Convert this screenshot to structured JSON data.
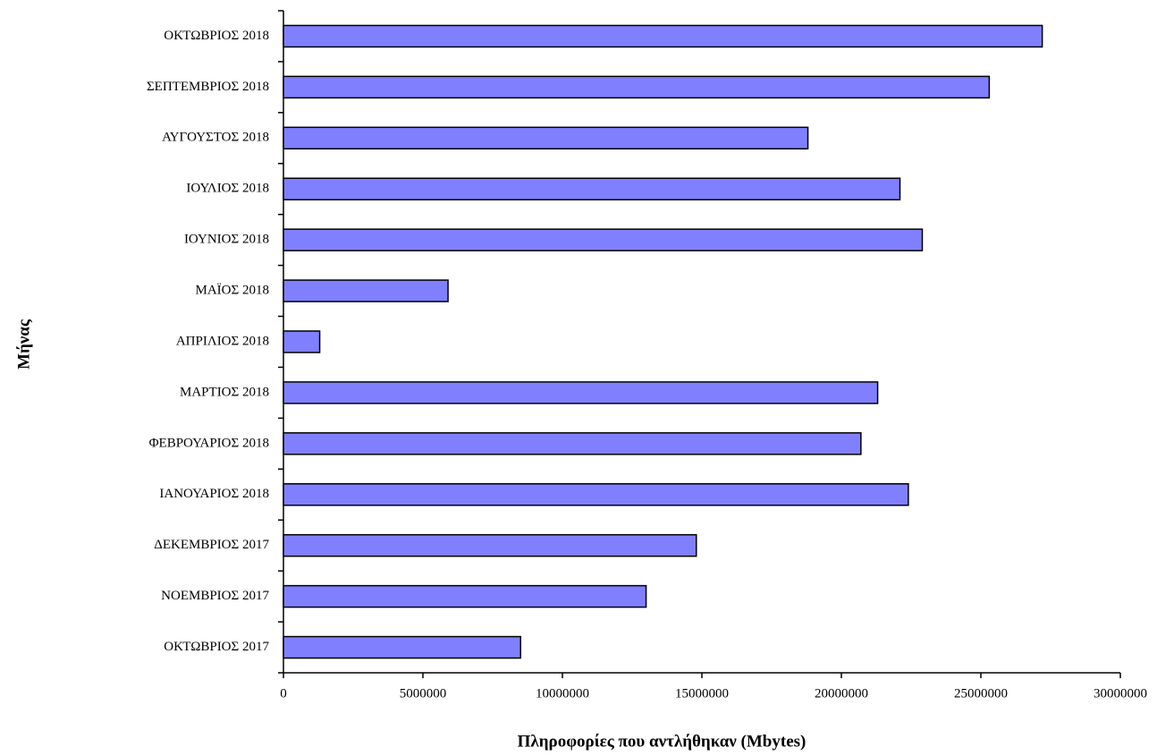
{
  "chart_data": {
    "type": "bar",
    "orientation": "horizontal",
    "x_label": "Πληροφορίες που αντλήθηκαν (Mbytes)",
    "y_label": "Μήνας",
    "categories": [
      "ΟΚΤΩΒΡΙΟΣ 2018",
      "ΣΕΠΤΕΜΒΡΙΟΣ 2018",
      "ΑΥΓΟΥΣΤΟΣ 2018",
      "ΙΟΥΛΙΟΣ 2018",
      "ΙΟΥΝΙΟΣ 2018",
      "ΜΑΪΟΣ 2018",
      "ΑΠΡΙΛΙΟΣ 2018",
      "ΜΑΡΤΙΟΣ 2018",
      "ΦΕΒΡΟΥΑΡΙΟΣ 2018",
      "ΙΑΝΟΥΑΡΙΟΣ 2018",
      "ΔΕΚΕΜΒΡΙΟΣ 2017",
      "ΝΟΕΜΒΡΙΟΣ 2017",
      "ΟΚΤΩΒΡΙΟΣ 2017"
    ],
    "values": [
      27200000,
      25300000,
      18800000,
      22100000,
      22900000,
      5900000,
      1300000,
      21300000,
      20700000,
      22400000,
      14800000,
      13000000,
      8500000
    ],
    "color": "#8080ff",
    "xlim": [
      0,
      30000000
    ],
    "xticks": [
      0,
      5000000,
      10000000,
      15000000,
      20000000,
      25000000,
      30000000
    ],
    "grid": false
  }
}
